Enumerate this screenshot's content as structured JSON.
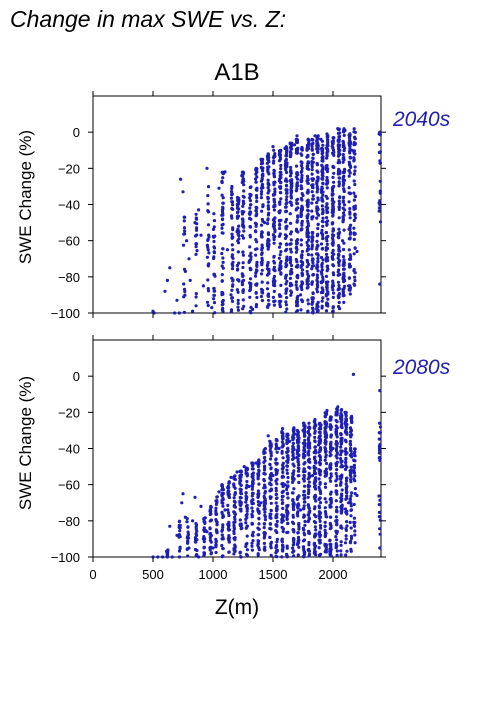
{
  "figure": {
    "title": "Change in max SWE vs. Z:",
    "scenario": "A1B",
    "xlabel": "Z(m)",
    "ylabel": "SWE Change (%)"
  },
  "colors": {
    "points": "#1f1fb4",
    "period_label": "#2020b0",
    "axes": "#000000"
  },
  "chart_data": [
    {
      "type": "scatter",
      "panel": "2040s",
      "period_label": "2040s",
      "ylabel": "SWE Change (%)",
      "xlabel": "",
      "xlim": [
        0,
        2400
      ],
      "ylim": [
        -100,
        20
      ],
      "xticks": [
        0,
        500,
        1000,
        1500,
        2000
      ],
      "yticks": [
        0,
        -20,
        -40,
        -60,
        -80,
        -100
      ],
      "ytick_labels": [
        "0",
        "−20",
        "−40",
        "−60",
        "−80",
        "−100"
      ],
      "x_tick_labels_shown": false,
      "grid": false,
      "series": [
        {
          "points": [
            [
              500,
              -99
            ],
            [
              510,
              -100
            ],
            [
              600,
              -88
            ],
            [
              620,
              -82
            ],
            [
              640,
              -75
            ],
            [
              680,
              -100
            ],
            [
              700,
              -93
            ],
            [
              720,
              -100
            ],
            [
              730,
              -26
            ],
            [
              750,
              -33
            ],
            [
              760,
              -47
            ],
            [
              770,
              -77
            ],
            [
              780,
              -60
            ],
            [
              800,
              -70
            ],
            [
              810,
              -82
            ],
            [
              830,
              -99
            ],
            [
              850,
              -50
            ],
            [
              880,
              -43
            ],
            [
              900,
              -57
            ],
            [
              920,
              -85
            ],
            [
              950,
              -20
            ],
            [
              960,
              -65
            ],
            [
              990,
              -97
            ],
            [
              1050,
              -31
            ],
            [
              1080,
              -48
            ],
            [
              1100,
              -22
            ],
            [
              1120,
              -65
            ],
            [
              1150,
              -90
            ],
            [
              1200,
              -55
            ],
            [
              1240,
              -24
            ],
            [
              1260,
              -36
            ],
            [
              1300,
              -72
            ],
            [
              1330,
              -98
            ],
            [
              1360,
              -20
            ],
            [
              1400,
              -15
            ],
            [
              1430,
              -50
            ],
            [
              1460,
              -12
            ],
            [
              1500,
              -8
            ],
            [
              1550,
              -44
            ],
            [
              1600,
              -9
            ],
            [
              1640,
              -62
            ],
            [
              1680,
              -7
            ],
            [
              1700,
              -2
            ],
            [
              1730,
              -90
            ],
            [
              1750,
              -35
            ],
            [
              1800,
              -5
            ],
            [
              1830,
              -70
            ],
            [
              1850,
              -2
            ],
            [
              1880,
              -46
            ],
            [
              1900,
              -4
            ],
            [
              1950,
              -1
            ],
            [
              2000,
              -25
            ],
            [
              2040,
              2
            ],
            [
              2080,
              -60
            ],
            [
              2100,
              1
            ],
            [
              2130,
              -85
            ],
            [
              2160,
              -10
            ],
            [
              2200,
              -66
            ],
            [
              2390,
              0
            ],
            [
              2390,
              -40
            ],
            [
              2390,
              -84
            ]
          ],
          "clusters": [
            {
              "x": 760,
              "ymin": -100,
              "ymax": -40,
              "n": 14
            },
            {
              "x": 860,
              "ymin": -100,
              "ymax": -45,
              "n": 16
            },
            {
              "x": 960,
              "ymin": -100,
              "ymax": -30,
              "n": 22
            },
            {
              "x": 1010,
              "ymin": -100,
              "ymax": -45,
              "n": 26
            },
            {
              "x": 1080,
              "ymin": -100,
              "ymax": -22,
              "n": 45
            },
            {
              "x": 1160,
              "ymin": -100,
              "ymax": -30,
              "n": 40
            },
            {
              "x": 1210,
              "ymin": -100,
              "ymax": -35,
              "n": 42
            },
            {
              "x": 1250,
              "ymin": -100,
              "ymax": -22,
              "n": 55
            },
            {
              "x": 1310,
              "ymin": -100,
              "ymax": -30,
              "n": 45
            },
            {
              "x": 1360,
              "ymin": -100,
              "ymax": -20,
              "n": 52
            },
            {
              "x": 1410,
              "ymin": -100,
              "ymax": -15,
              "n": 60
            },
            {
              "x": 1460,
              "ymin": -100,
              "ymax": -12,
              "n": 70
            },
            {
              "x": 1510,
              "ymin": -100,
              "ymax": -10,
              "n": 75
            },
            {
              "x": 1560,
              "ymin": -100,
              "ymax": -10,
              "n": 70
            },
            {
              "x": 1610,
              "ymin": -100,
              "ymax": -8,
              "n": 80
            },
            {
              "x": 1650,
              "ymin": -100,
              "ymax": -6,
              "n": 75
            },
            {
              "x": 1700,
              "ymin": -100,
              "ymax": -4,
              "n": 85
            },
            {
              "x": 1740,
              "ymin": -100,
              "ymax": -8,
              "n": 70
            },
            {
              "x": 1790,
              "ymin": -100,
              "ymax": -3,
              "n": 90
            },
            {
              "x": 1830,
              "ymin": -100,
              "ymax": -4,
              "n": 80
            },
            {
              "x": 1870,
              "ymin": -100,
              "ymax": -2,
              "n": 95
            },
            {
              "x": 1910,
              "ymin": -100,
              "ymax": -5,
              "n": 80
            },
            {
              "x": 1950,
              "ymin": -100,
              "ymax": -2,
              "n": 95
            },
            {
              "x": 2000,
              "ymin": -100,
              "ymax": -3,
              "n": 90
            },
            {
              "x": 2050,
              "ymin": -98,
              "ymax": 2,
              "n": 90
            },
            {
              "x": 2090,
              "ymin": -95,
              "ymax": 2,
              "n": 85
            },
            {
              "x": 2140,
              "ymin": -90,
              "ymax": 0,
              "n": 70
            },
            {
              "x": 2180,
              "ymin": -85,
              "ymax": 2,
              "n": 50
            },
            {
              "x": 2390,
              "ymin": -50,
              "ymax": 0,
              "n": 18
            }
          ]
        }
      ]
    },
    {
      "type": "scatter",
      "panel": "2080s",
      "period_label": "2080s",
      "ylabel": "SWE Change (%)",
      "xlabel": "Z(m)",
      "xlim": [
        0,
        2400
      ],
      "ylim": [
        -100,
        20
      ],
      "xticks": [
        0,
        500,
        1000,
        1500,
        2000
      ],
      "xtick_labels": [
        "0",
        "500",
        "1000",
        "1500",
        "2000"
      ],
      "yticks": [
        0,
        -20,
        -40,
        -60,
        -80,
        -100
      ],
      "ytick_labels": [
        "0",
        "−20",
        "−40",
        "−60",
        "−80",
        "−100"
      ],
      "grid": false,
      "series": [
        {
          "points": [
            [
              500,
              -100
            ],
            [
              540,
              -100
            ],
            [
              580,
              -100
            ],
            [
              620,
              -100
            ],
            [
              640,
              -83
            ],
            [
              660,
              -100
            ],
            [
              700,
              -88
            ],
            [
              720,
              -100
            ],
            [
              740,
              -70
            ],
            [
              750,
              -65
            ],
            [
              770,
              -78
            ],
            [
              800,
              -95
            ],
            [
              830,
              -80
            ],
            [
              850,
              -67
            ],
            [
              880,
              -100
            ],
            [
              900,
              -72
            ],
            [
              920,
              -90
            ],
            [
              950,
              -86
            ],
            [
              980,
              -74
            ],
            [
              1000,
              -95
            ],
            [
              1050,
              -64
            ],
            [
              1100,
              -74
            ],
            [
              1150,
              -56
            ],
            [
              1180,
              -78
            ],
            [
              1200,
              -53
            ],
            [
              1240,
              -84
            ],
            [
              1260,
              -50
            ],
            [
              1300,
              -61
            ],
            [
              1360,
              -48
            ],
            [
              1400,
              -70
            ],
            [
              1430,
              -45
            ],
            [
              1460,
              -33
            ],
            [
              1500,
              -55
            ],
            [
              1550,
              -40
            ],
            [
              1580,
              -29
            ],
            [
              1600,
              -60
            ],
            [
              1640,
              -36
            ],
            [
              1680,
              -32
            ],
            [
              1700,
              -45
            ],
            [
              1730,
              -74
            ],
            [
              1750,
              -30
            ],
            [
              1800,
              -26
            ],
            [
              1830,
              -55
            ],
            [
              1850,
              -24
            ],
            [
              1880,
              -38
            ],
            [
              1900,
              -27
            ],
            [
              1950,
              -19
            ],
            [
              2000,
              -40
            ],
            [
              2040,
              -17
            ],
            [
              2080,
              -50
            ],
            [
              2100,
              -20
            ],
            [
              2130,
              -70
            ],
            [
              2170,
              1
            ],
            [
              2200,
              -66
            ],
            [
              2390,
              -8
            ],
            [
              2390,
              -45
            ],
            [
              2390,
              -95
            ]
          ],
          "clusters": [
            {
              "x": 620,
              "ymin": -100,
              "ymax": -96,
              "n": 10
            },
            {
              "x": 720,
              "ymin": -100,
              "ymax": -80,
              "n": 14
            },
            {
              "x": 790,
              "ymin": -100,
              "ymax": -75,
              "n": 16
            },
            {
              "x": 860,
              "ymin": -100,
              "ymax": -80,
              "n": 18
            },
            {
              "x": 930,
              "ymin": -100,
              "ymax": -78,
              "n": 20
            },
            {
              "x": 980,
              "ymin": -100,
              "ymax": -72,
              "n": 25
            },
            {
              "x": 1030,
              "ymin": -100,
              "ymax": -65,
              "n": 30
            },
            {
              "x": 1080,
              "ymin": -100,
              "ymax": -60,
              "n": 40
            },
            {
              "x": 1130,
              "ymin": -100,
              "ymax": -58,
              "n": 40
            },
            {
              "x": 1180,
              "ymin": -100,
              "ymax": -55,
              "n": 42
            },
            {
              "x": 1230,
              "ymin": -100,
              "ymax": -52,
              "n": 45
            },
            {
              "x": 1280,
              "ymin": -100,
              "ymax": -50,
              "n": 45
            },
            {
              "x": 1330,
              "ymin": -100,
              "ymax": -48,
              "n": 48
            },
            {
              "x": 1380,
              "ymin": -100,
              "ymax": -46,
              "n": 50
            },
            {
              "x": 1430,
              "ymin": -100,
              "ymax": -40,
              "n": 55
            },
            {
              "x": 1480,
              "ymin": -100,
              "ymax": -36,
              "n": 60
            },
            {
              "x": 1530,
              "ymin": -100,
              "ymax": -35,
              "n": 60
            },
            {
              "x": 1580,
              "ymin": -100,
              "ymax": -30,
              "n": 65
            },
            {
              "x": 1620,
              "ymin": -100,
              "ymax": -32,
              "n": 65
            },
            {
              "x": 1670,
              "ymin": -100,
              "ymax": -28,
              "n": 70
            },
            {
              "x": 1710,
              "ymin": -100,
              "ymax": -30,
              "n": 70
            },
            {
              "x": 1760,
              "ymin": -100,
              "ymax": -26,
              "n": 75
            },
            {
              "x": 1800,
              "ymin": -100,
              "ymax": -27,
              "n": 75
            },
            {
              "x": 1850,
              "ymin": -100,
              "ymax": -25,
              "n": 80
            },
            {
              "x": 1890,
              "ymin": -100,
              "ymax": -26,
              "n": 78
            },
            {
              "x": 1940,
              "ymin": -100,
              "ymax": -20,
              "n": 80
            },
            {
              "x": 1980,
              "ymin": -100,
              "ymax": -22,
              "n": 78
            },
            {
              "x": 2030,
              "ymin": -100,
              "ymax": -18,
              "n": 75
            },
            {
              "x": 2070,
              "ymin": -100,
              "ymax": -18,
              "n": 70
            },
            {
              "x": 2110,
              "ymin": -100,
              "ymax": -20,
              "n": 65
            },
            {
              "x": 2150,
              "ymin": -98,
              "ymax": -22,
              "n": 55
            },
            {
              "x": 2180,
              "ymin": -95,
              "ymax": -40,
              "n": 30
            },
            {
              "x": 2390,
              "ymin": -100,
              "ymax": -25,
              "n": 22
            }
          ]
        }
      ]
    }
  ]
}
